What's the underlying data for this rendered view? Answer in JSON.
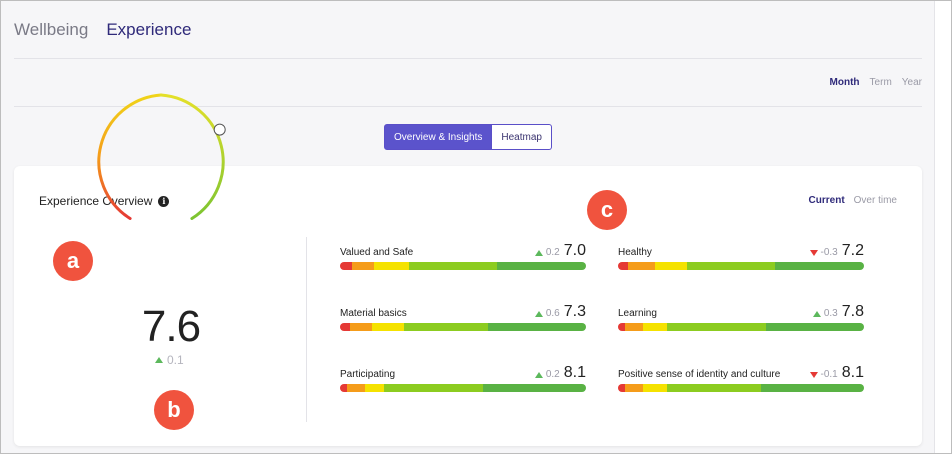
{
  "nav": {
    "tabs": [
      {
        "label": "Wellbeing"
      },
      {
        "label": "Experience"
      }
    ]
  },
  "period": {
    "options": [
      "Month",
      "Term",
      "Year"
    ],
    "selected": "Month"
  },
  "view_toggle": {
    "overview_label": "Overview & Insights",
    "heatmap_label": "Heatmap"
  },
  "card": {
    "title": "Experience Overview",
    "toggle": {
      "current_label": "Current",
      "over_time_label": "Over time"
    }
  },
  "gauge": {
    "value": "7.6",
    "change": "0.1",
    "direction": "up",
    "level": 0.76
  },
  "metrics": [
    {
      "label": "Valued and Safe",
      "change": "0.2",
      "direction": "up",
      "score": "7.0"
    },
    {
      "label": "Healthy",
      "change": "-0.3",
      "direction": "down",
      "score": "7.2"
    },
    {
      "label": "Material basics",
      "change": "0.6",
      "direction": "up",
      "score": "7.3"
    },
    {
      "label": "Learning",
      "change": "0.3",
      "direction": "up",
      "score": "7.8"
    },
    {
      "label": "Participating",
      "change": "0.2",
      "direction": "up",
      "score": "8.1"
    },
    {
      "label": "Positive sense of identity and culture",
      "change": "-0.1",
      "direction": "down",
      "score": "8.1"
    }
  ],
  "annotations": [
    "a",
    "b",
    "c"
  ],
  "colors": {
    "accent": "#5b53cc",
    "active_text": "#2f2a7a",
    "up": "#5cb85c",
    "down": "#e53935",
    "annotation": "#f0533e"
  }
}
